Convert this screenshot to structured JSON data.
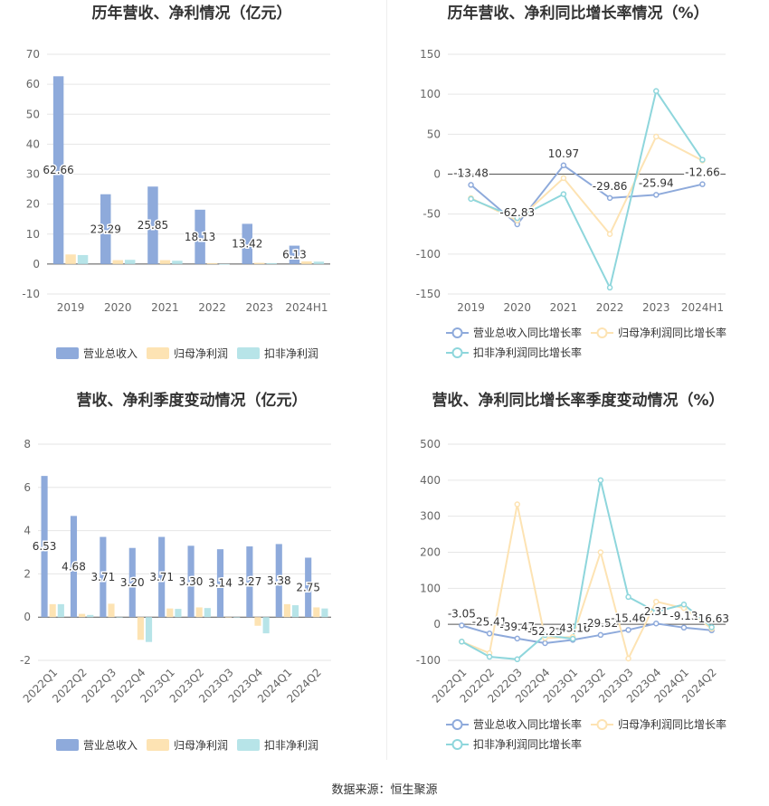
{
  "source_text": "数据来源：恒生聚源",
  "chart_data": [
    {
      "id": "annual-revenue",
      "type": "bar",
      "title": "历年营收、净利情况（亿元）",
      "categories": [
        "2019",
        "2020",
        "2021",
        "2022",
        "2023",
        "2024H1"
      ],
      "ylim": [
        -10,
        70
      ],
      "yticks": [
        -10,
        0,
        10,
        20,
        30,
        40,
        50,
        60,
        70
      ],
      "grid": true,
      "legend_position": "bottom",
      "label_series": 0,
      "series": [
        {
          "name": "营业总收入",
          "color": "#8eaadb",
          "values": [
            62.66,
            23.29,
            25.85,
            18.13,
            13.42,
            6.13
          ]
        },
        {
          "name": "归母净利润",
          "color": "#fde3b3",
          "values": [
            3.2,
            1.3,
            1.3,
            0.3,
            0.4,
            0.9
          ]
        },
        {
          "name": "扣非净利润",
          "color": "#b7e4e8",
          "values": [
            3.0,
            1.4,
            1.1,
            -0.2,
            0.3,
            0.8
          ]
        }
      ],
      "data_labels": [
        "62.66",
        "23.29",
        "25.85",
        "18.13",
        "13.42",
        "6.13"
      ]
    },
    {
      "id": "annual-growth",
      "type": "line",
      "title": "历年营收、净利同比增长率情况（%）",
      "categories": [
        "2019",
        "2020",
        "2021",
        "2022",
        "2023",
        "2024H1"
      ],
      "ylim": [
        -150,
        150
      ],
      "yticks": [
        -150,
        -100,
        -50,
        0,
        50,
        100,
        150
      ],
      "grid": true,
      "legend_position": "bottom",
      "label_series": 0,
      "series": [
        {
          "name": "营业总收入同比增长率",
          "color": "#8eaadb",
          "values": [
            -13.48,
            -62.83,
            10.97,
            -29.86,
            -25.94,
            -12.66
          ]
        },
        {
          "name": "归母净利润同比增长率",
          "color": "#fde3b3",
          "values": [
            -30,
            -58,
            -5,
            -75,
            47,
            17
          ]
        },
        {
          "name": "扣非净利润同比增长率",
          "color": "#8ed6dc",
          "values": [
            -31,
            -55,
            -25,
            -142,
            104,
            18
          ]
        }
      ],
      "data_labels": [
        "-13.48",
        "-62.83",
        "10.97",
        "-29.86",
        "-25.94",
        "-12.66"
      ]
    },
    {
      "id": "quarterly-revenue",
      "type": "bar",
      "title": "营收、净利季度变动情况（亿元）",
      "categories": [
        "2022Q1",
        "2022Q2",
        "2022Q3",
        "2022Q4",
        "2023Q1",
        "2023Q2",
        "2023Q3",
        "2023Q4",
        "2024Q1",
        "2024Q2"
      ],
      "ylim": [
        -2,
        8
      ],
      "yticks": [
        -2,
        0,
        2,
        4,
        6,
        8
      ],
      "grid": true,
      "legend_position": "bottom",
      "label_series": 0,
      "rotate_x_labels": true,
      "series": [
        {
          "name": "营业总收入",
          "color": "#8eaadb",
          "values": [
            6.53,
            4.68,
            3.71,
            3.2,
            3.71,
            3.3,
            3.14,
            3.27,
            3.38,
            2.75
          ]
        },
        {
          "name": "归母净利润",
          "color": "#fde3b3",
          "values": [
            0.6,
            0.15,
            0.62,
            -1.05,
            0.4,
            0.45,
            0.0,
            -0.4,
            0.6,
            0.45
          ]
        },
        {
          "name": "扣非净利润",
          "color": "#b7e4e8",
          "values": [
            0.6,
            0.1,
            0.0,
            -1.15,
            0.38,
            0.42,
            0.0,
            -0.75,
            0.55,
            0.4
          ]
        }
      ],
      "data_labels": [
        "6.53",
        "4.68",
        "3.71",
        "3.20",
        "3.71",
        "3.30",
        "3.14",
        "3.27",
        "3.38",
        "2.75"
      ]
    },
    {
      "id": "quarterly-growth",
      "type": "line",
      "title": "营收、净利同比增长率季度变动情况（%）",
      "categories": [
        "2022Q1",
        "2022Q2",
        "2022Q3",
        "2022Q4",
        "2023Q1",
        "2023Q2",
        "2023Q3",
        "2023Q4",
        "2024Q1",
        "2024Q2"
      ],
      "ylim": [
        -100,
        500
      ],
      "yticks": [
        -100,
        0,
        100,
        200,
        300,
        400,
        500
      ],
      "grid": true,
      "legend_position": "bottom",
      "label_series": 0,
      "rotate_x_labels": true,
      "series": [
        {
          "name": "营业总收入同比增长率",
          "color": "#8eaadb",
          "values": [
            -3.05,
            -25.41,
            -39.47,
            -52.23,
            -43.16,
            -29.52,
            -15.46,
            2.31,
            -9.13,
            -16.63
          ]
        },
        {
          "name": "归母净利润同比增长率",
          "color": "#fde3b3",
          "values": [
            -48,
            -80,
            333,
            -38,
            -35,
            200,
            -95,
            63,
            45,
            -12
          ]
        },
        {
          "name": "扣非净利润同比增长率",
          "color": "#8ed6dc",
          "values": [
            -48,
            -90,
            -97,
            -30,
            -40,
            400,
            76,
            35,
            55,
            -8
          ]
        }
      ],
      "data_labels": [
        "-3.05",
        "-25.41",
        "-39.47",
        "-52.23",
        "-43.16",
        "-29.52",
        "-15.46",
        "2.31",
        "-9.13",
        "-16.63"
      ]
    }
  ]
}
